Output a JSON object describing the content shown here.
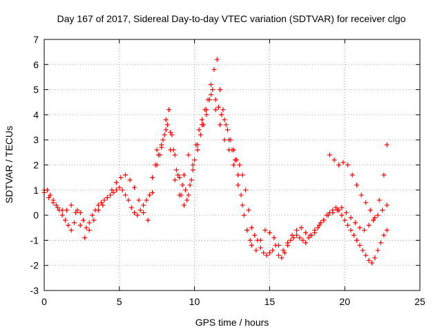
{
  "chart_data": {
    "type": "scatter",
    "title": "Day 167 of 2017, Sidereal Day-to-day VTEC variation (SDTVAR) for receiver clgo",
    "xlabel": "GPS time / hours",
    "ylabel": "SDTVAR / TECUs",
    "xlim": [
      0,
      25
    ],
    "ylim": [
      -3,
      7
    ],
    "xticks": [
      "0",
      "5",
      "10",
      "15",
      "20",
      "25"
    ],
    "yticks": [
      "-3",
      "-2",
      "-1",
      "0",
      "1",
      "2",
      "3",
      "4",
      "5",
      "6",
      "7"
    ],
    "grid": true,
    "marker": "+",
    "color": "#ff0000",
    "series": [
      {
        "name": "SDTVAR",
        "x": [
          0.0,
          0.2,
          0.4,
          0.6,
          0.8,
          1.0,
          1.2,
          1.4,
          1.6,
          1.8,
          2.0,
          2.2,
          2.4,
          2.6,
          2.8,
          3.0,
          3.2,
          3.4,
          3.6,
          3.8,
          4.0,
          4.2,
          4.4,
          4.6,
          4.8,
          5.0,
          5.2,
          5.4,
          5.6,
          5.8,
          6.0,
          6.2,
          6.4,
          6.6,
          6.8,
          7.0,
          7.2,
          7.4,
          7.6,
          7.8,
          8.0,
          8.2,
          8.4,
          8.6,
          8.8,
          9.0,
          9.2,
          9.4,
          9.6,
          9.8,
          10.0,
          10.2,
          10.4,
          10.6,
          10.8,
          11.0,
          11.2,
          11.4,
          11.6,
          11.8,
          12.0,
          12.2,
          12.4,
          12.6,
          12.8,
          13.0,
          13.2,
          13.4,
          13.6,
          13.8,
          14.0,
          14.2,
          14.4,
          14.6,
          14.8,
          15.0,
          15.2,
          15.4,
          15.6,
          15.8,
          16.0,
          16.2,
          16.4,
          16.6,
          16.8,
          17.0,
          17.2,
          17.4,
          17.6,
          17.8,
          18.0,
          18.2,
          18.4,
          18.6,
          18.8,
          19.0,
          19.2,
          19.4,
          19.6,
          19.8,
          20.0,
          20.2,
          20.4,
          20.6,
          20.8,
          21.0,
          21.2,
          21.4,
          21.6,
          21.8,
          22.0,
          22.2,
          22.4,
          22.6,
          22.8,
          0.0,
          0.3,
          0.6,
          0.9,
          1.2,
          1.5,
          1.8,
          2.1,
          2.4,
          2.7,
          3.0,
          3.3,
          3.6,
          3.9,
          4.2,
          4.5,
          4.8,
          5.1,
          5.4,
          5.7,
          6.0,
          6.3,
          6.6,
          6.9,
          7.2,
          7.5,
          7.8,
          8.1,
          8.4,
          8.7,
          9.0,
          9.3,
          9.6,
          9.9,
          10.2,
          10.5,
          10.8,
          11.1,
          11.4,
          11.7,
          12.0,
          12.3,
          12.6,
          12.9,
          13.2,
          13.5,
          13.8,
          14.1,
          14.4,
          14.7,
          15.0,
          15.3,
          15.6,
          15.9,
          16.2,
          16.5,
          16.8,
          17.1,
          17.4,
          17.7,
          18.0,
          18.3,
          18.6,
          18.9,
          19.2,
          19.5,
          19.8,
          20.1,
          20.4,
          20.7,
          21.0,
          21.3,
          21.6,
          21.9,
          22.2,
          22.5,
          22.8,
          7.5,
          7.7,
          7.9,
          8.1,
          8.3,
          8.5,
          8.7,
          8.9,
          9.1,
          9.3,
          9.5,
          9.7,
          9.9,
          10.1,
          10.3,
          10.5,
          10.7,
          10.9,
          11.1,
          11.3,
          11.5,
          11.7,
          11.9,
          12.1,
          12.3,
          12.5,
          12.7,
          12.9,
          13.1,
          13.3,
          13.5,
          13.7,
          19.0,
          19.3,
          19.6,
          19.9,
          20.2,
          20.5,
          20.8,
          21.1,
          21.4,
          21.7,
          22.0,
          22.3,
          22.6,
          22.8
        ],
        "y": [
          1.0,
          1.0,
          0.8,
          0.6,
          0.4,
          0.2,
          0.0,
          -0.2,
          -0.4,
          -0.6,
          -0.3,
          0.2,
          0.1,
          -0.2,
          -0.5,
          -0.3,
          0.0,
          0.2,
          0.4,
          0.5,
          0.6,
          0.7,
          0.8,
          0.9,
          1.0,
          1.1,
          1.0,
          0.8,
          0.6,
          0.3,
          0.1,
          0.0,
          0.2,
          0.4,
          0.6,
          0.8,
          1.5,
          2.0,
          2.4,
          2.7,
          3.2,
          3.6,
          3.3,
          2.6,
          1.8,
          1.5,
          1.2,
          1.0,
          0.8,
          1.4,
          2.2,
          2.8,
          3.2,
          3.6,
          4.0,
          4.6,
          5.0,
          4.6,
          4.3,
          4.0,
          3.8,
          3.4,
          3.0,
          2.6,
          2.2,
          2.0,
          1.6,
          1.0,
          0.2,
          -0.5,
          -0.8,
          -1.0,
          -1.3,
          -1.5,
          -1.6,
          -1.5,
          -1.4,
          -1.2,
          -1.6,
          -1.7,
          -1.5,
          -1.2,
          -1.0,
          -0.9,
          -0.8,
          -0.9,
          -1.0,
          -1.1,
          -0.9,
          -0.8,
          -0.7,
          -0.5,
          -0.3,
          -0.2,
          0.0,
          0.1,
          0.2,
          0.3,
          0.2,
          0.0,
          -0.2,
          -0.4,
          -0.6,
          -0.8,
          -1.0,
          -1.2,
          -1.4,
          -1.6,
          -1.8,
          -1.9,
          -1.7,
          -1.4,
          -1.1,
          -0.8,
          -0.6,
          0.9,
          0.7,
          0.5,
          0.3,
          0.2,
          0.2,
          0.4,
          0.1,
          -0.4,
          -0.9,
          -0.6,
          -0.2,
          0.2,
          0.4,
          0.7,
          1.0,
          1.3,
          1.5,
          1.6,
          1.4,
          1.1,
          0.6,
          0.1,
          -0.2,
          0.9,
          2.0,
          2.8,
          3.4,
          2.6,
          1.4,
          0.8,
          1.6,
          2.4,
          1.8,
          2.6,
          3.6,
          4.2,
          4.8,
          4.2,
          3.6,
          3.0,
          2.6,
          2.0,
          1.2,
          0.4,
          -0.6,
          -1.2,
          -1.4,
          -1.0,
          -0.6,
          -0.7,
          -0.9,
          -1.2,
          -1.4,
          -1.1,
          -0.8,
          -0.6,
          -0.5,
          -0.7,
          -0.8,
          -0.6,
          -0.4,
          -0.2,
          0.0,
          0.1,
          0.2,
          0.3,
          0.1,
          -0.1,
          -0.3,
          -0.5,
          -0.6,
          -0.4,
          -0.2,
          0.0,
          0.2,
          0.4,
          2.6,
          2.4,
          3.0,
          3.8,
          4.2,
          3.2,
          2.4,
          1.6,
          0.8,
          0.4,
          0.6,
          1.2,
          2.0,
          2.8,
          3.4,
          3.8,
          4.2,
          4.6,
          5.2,
          5.8,
          6.2,
          5.0,
          4.2,
          3.6,
          3.0,
          2.6,
          2.2,
          1.6,
          0.8,
          0.0,
          -0.6,
          -1.0,
          2.4,
          2.2,
          2.0,
          2.1,
          2.0,
          1.6,
          1.2,
          0.8,
          0.5,
          0.2,
          -0.1,
          0.6,
          1.6,
          2.8
        ]
      }
    ]
  }
}
